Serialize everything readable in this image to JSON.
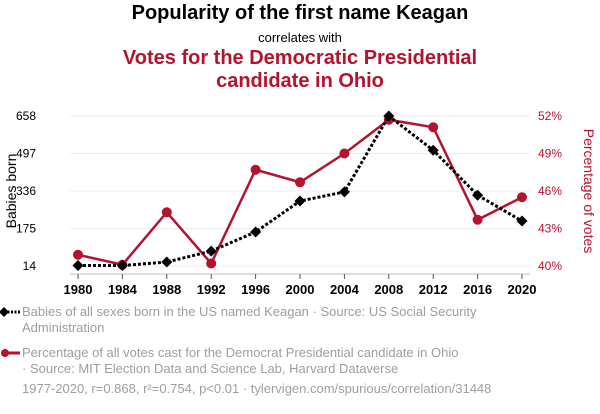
{
  "header": {
    "title": "Popularity of the first name Keagan",
    "subtitle": "correlates with",
    "title2_line1": "Votes for the Democratic Presidential",
    "title2_line2": "candidate in Ohio"
  },
  "colors": {
    "series1": "#000000",
    "series2": "#b5122e",
    "grid": "#eeeeee",
    "legend_text": "#9e9e9e"
  },
  "legend": [
    {
      "icon": "black-diamond-dotted-line-icon",
      "text_line1": "Babies of all sexes born in the US named Keagan · Source: US Social Security",
      "text_line2": "Administration"
    },
    {
      "icon": "red-circle-line-icon",
      "text_line1": "Percentage of all votes cast for the Democrat Presidential candidate in Ohio",
      "text_line2": "· Source: MIT Election Data and Science Lab, Harvard Dataverse"
    }
  ],
  "footer": "1977-2020, r=0.868, r²=0.754, p<0.01 · tylervigen.com/spurious/correlation/31448",
  "chart_data": {
    "type": "line",
    "title": "Popularity of the first name Keagan correlates with Votes for the Democratic Presidential candidate in Ohio",
    "x": [
      1980,
      1984,
      1988,
      1992,
      1996,
      2000,
      2004,
      2008,
      2012,
      2016,
      2020
    ],
    "xlabel": "",
    "x_ticks": [
      "1980",
      "1984",
      "1988",
      "1992",
      "1996",
      "2000",
      "2004",
      "2008",
      "2012",
      "2016",
      "2020"
    ],
    "ylabel": "Babies born",
    "ylabel_right": "Percentage of votes",
    "ylim": [
      14,
      658
    ],
    "ylim_right": [
      40,
      52
    ],
    "y_ticks": [
      "14",
      "175",
      "336",
      "497",
      "658"
    ],
    "y_ticks_right": [
      "40%",
      "43%",
      "46%",
      "49%",
      "52%"
    ],
    "grid": true,
    "legend_position": "bottom",
    "series": [
      {
        "name": "Babies of all sexes born in the US named Keagan",
        "axis": "left",
        "style": "dotted-diamond",
        "values": [
          16,
          16,
          31,
          78,
          160,
          293,
          332,
          658,
          511,
          318,
          207
        ]
      },
      {
        "name": "Percentage of all votes cast for the Democrat Presidential candidate in Ohio",
        "axis": "right",
        "style": "solid-circle",
        "values": [
          40.9,
          40.1,
          44.3,
          40.2,
          47.7,
          46.7,
          49.0,
          51.7,
          51.1,
          43.7,
          45.5
        ]
      }
    ]
  }
}
